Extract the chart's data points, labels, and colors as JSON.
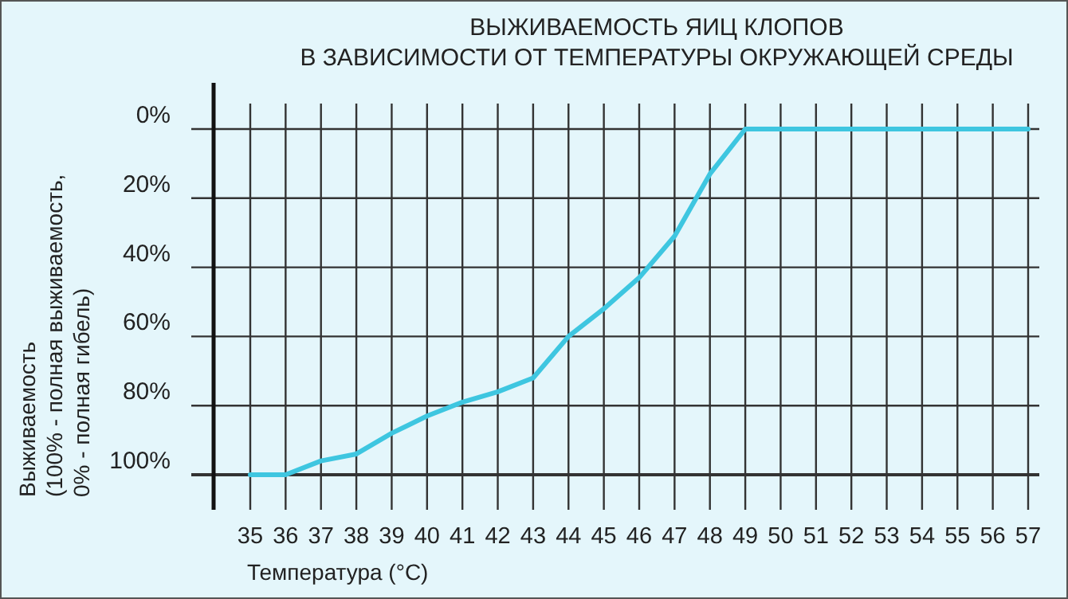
{
  "chart_data": {
    "type": "line",
    "title": "ВЫЖИВАЕМОСТЬ ЯИЦ КЛОПОВ\nВ ЗАВИСИМОСТИ ОТ ТЕМПЕРАТУРЫ ОКРУЖАЮЩЕЙ СРЕДЫ",
    "xlabel": "Температура (°C)",
    "ylabel": "Выживаемость\n(100% - полная выживаемость,\n0% - полная гибель)",
    "x": [
      35,
      36,
      37,
      38,
      39,
      40,
      41,
      42,
      43,
      44,
      45,
      46,
      47,
      48,
      49,
      50,
      51,
      52,
      53,
      54,
      55,
      56,
      57
    ],
    "series": [
      {
        "color": "#3ec6e0",
        "values": [
          100,
          100,
          96,
          94,
          88,
          83,
          79,
          76,
          72,
          60,
          52,
          43,
          31,
          13,
          0,
          0,
          0,
          0,
          0,
          0,
          0,
          0,
          0
        ]
      }
    ],
    "xlim": [
      35,
      57
    ],
    "xticks": [
      35,
      36,
      37,
      38,
      39,
      40,
      41,
      42,
      43,
      44,
      45,
      46,
      47,
      48,
      49,
      50,
      51,
      52,
      53,
      54,
      55,
      56,
      57
    ],
    "ylim": [
      100,
      0
    ],
    "yticks": [
      {
        "value": 0,
        "label": "0%"
      },
      {
        "value": 20,
        "label": "20%"
      },
      {
        "value": 40,
        "label": "40%"
      },
      {
        "value": 60,
        "label": "60%"
      },
      {
        "value": 80,
        "label": "80%"
      },
      {
        "value": 100,
        "label": "100%"
      }
    ],
    "grid": true,
    "marker": "none",
    "line_style": "solid"
  }
}
